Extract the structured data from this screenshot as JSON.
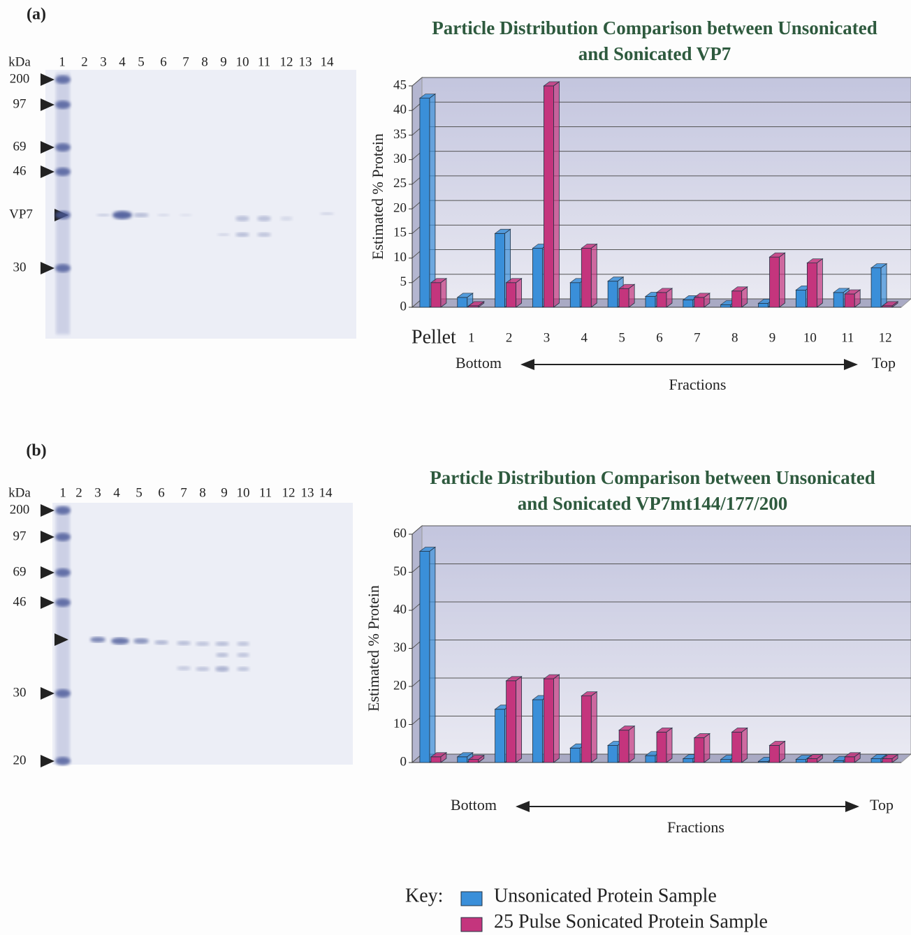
{
  "gels": [
    {
      "panel": "(a)",
      "unit": "kDa",
      "lanes": [
        1,
        2,
        3,
        4,
        5,
        6,
        7,
        8,
        9,
        10,
        11,
        12,
        13,
        14
      ],
      "markers": [
        200,
        97,
        69,
        46,
        "VP7",
        30
      ]
    },
    {
      "panel": "(b)",
      "unit": "kDa",
      "lanes": [
        1,
        2,
        3,
        4,
        5,
        6,
        7,
        8,
        9,
        10,
        11,
        12,
        13,
        14
      ],
      "markers": [
        200,
        97,
        69,
        46,
        30,
        20
      ]
    }
  ],
  "chart_data": [
    {
      "type": "bar",
      "title": "Particle Distribution Comparison between Unsonicated and Sonicated VP7",
      "categories": [
        "Pellet",
        "1",
        "2",
        "3",
        "4",
        "5",
        "6",
        "7",
        "8",
        "9",
        "10",
        "11",
        "12"
      ],
      "series": [
        {
          "color": "#3a8fd9",
          "values": [
            42.5,
            2,
            15,
            12,
            5,
            5.3,
            2.2,
            1.5,
            0.5,
            0.8,
            3.5,
            3,
            8
          ]
        },
        {
          "color": "#c4357d",
          "values": [
            5,
            0.3,
            5,
            45,
            12,
            3.8,
            3,
            2,
            3.3,
            10.2,
            9,
            2.7,
            0.3
          ]
        }
      ],
      "ylim": [
        0,
        45
      ],
      "yticks": [
        0,
        5,
        10,
        15,
        20,
        25,
        30,
        35,
        40,
        45
      ],
      "grid": true,
      "y_label": "Estimated % Protein",
      "x_label": "Fractions",
      "x_start": "Bottom",
      "x_end": "Top"
    },
    {
      "type": "bar",
      "title": "Particle Distribution Comparison between Unsonicated and Sonicated VP7mt144/177/200",
      "categories": [
        null,
        null,
        null,
        null,
        null,
        null,
        null,
        null,
        null,
        null,
        null,
        null,
        null
      ],
      "series": [
        {
          "name": "Unsonicated Protein Sample",
          "color": "#3a8fd9",
          "values": [
            55.5,
            1.5,
            14,
            16.5,
            3.8,
            4.5,
            1.8,
            1,
            0.8,
            0.3,
            0.8,
            0.5,
            1
          ]
        },
        {
          "name": "25 Pulse Sonicated Protein Sample",
          "color": "#c4357d",
          "values": [
            1.5,
            0.8,
            21.5,
            22,
            17.5,
            8.5,
            8,
            6.5,
            8,
            4.5,
            1,
            1.5,
            1
          ]
        }
      ],
      "ylim": [
        0,
        60
      ],
      "yticks": [
        0,
        10,
        20,
        30,
        40,
        50,
        60
      ],
      "grid": true,
      "y_label": "Estimated % Protein",
      "x_label": "Fractions",
      "x_start": "Bottom",
      "x_end": "Top",
      "legend": "bottom",
      "legend_title": "Key:"
    }
  ]
}
